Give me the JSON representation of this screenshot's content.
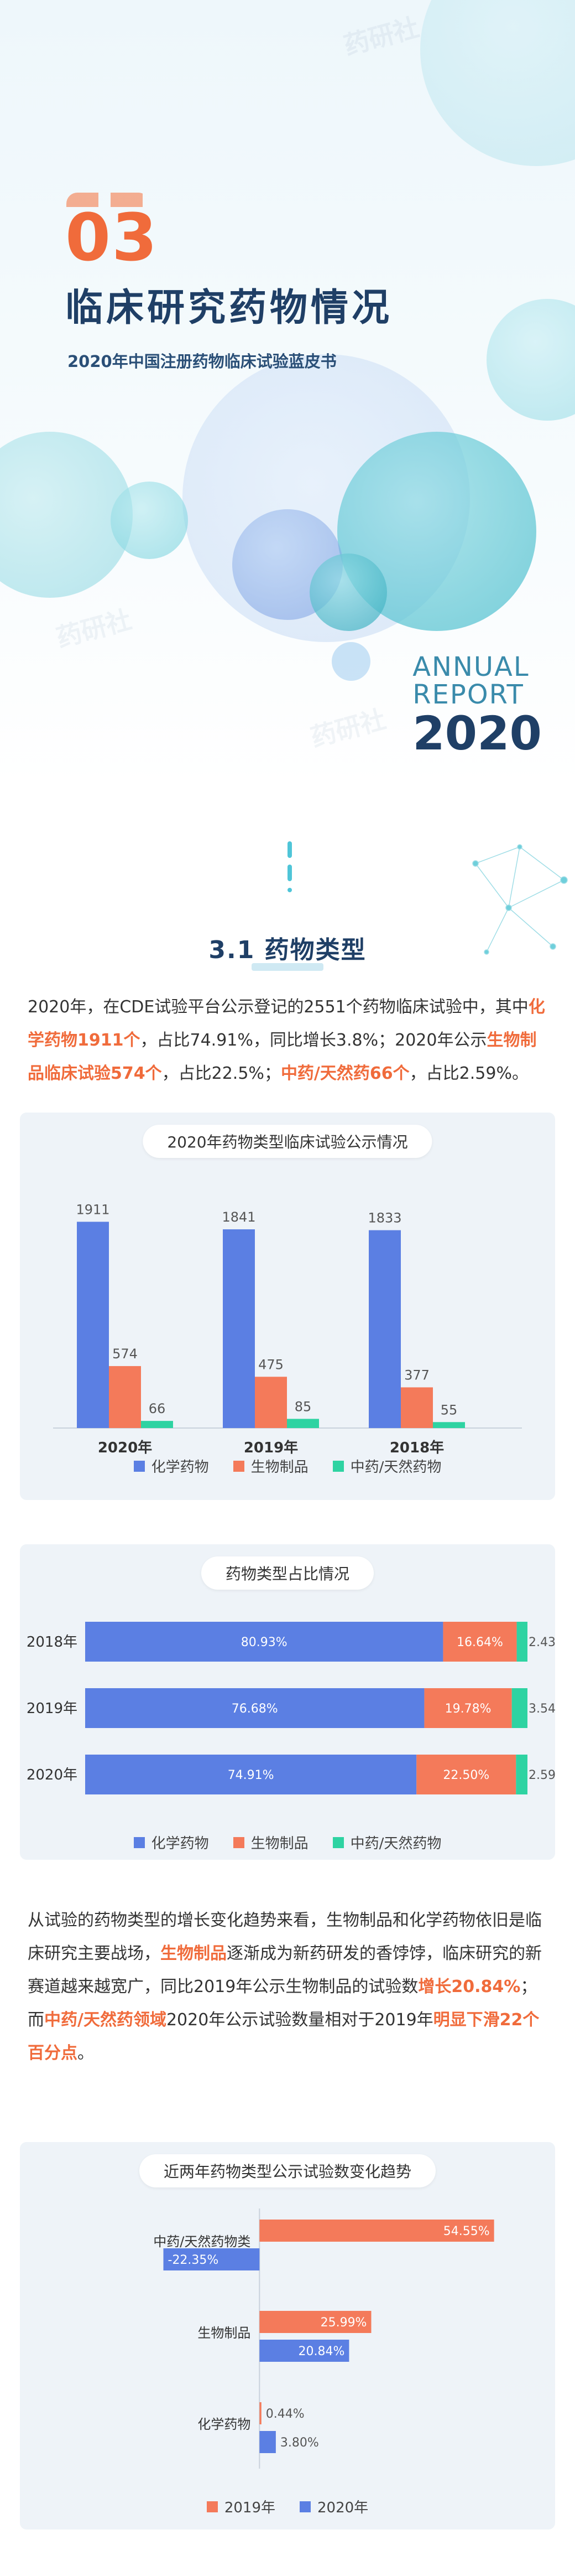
{
  "colors": {
    "chem": "#5b7fe3",
    "bio": "#f47a5a",
    "tcm": "#2ed3a2",
    "accent": "#f06b3b",
    "navy": "#1f3f66"
  },
  "hero": {
    "number": "03",
    "title": "临床研究药物情况",
    "subtitle": "2020年中国注册药物临床试验蓝皮书",
    "report_l1": "ANNUAL",
    "report_l2": "REPORT",
    "report_l3": "2020",
    "watermark": "药研社"
  },
  "section": {
    "title": "3.1 药物类型"
  },
  "para1": {
    "t1": "2020年，在CDE试验平台公示登记的2551个药物临床试验中，其中",
    "e1": "化学药物1911个",
    "t2": "，占比74.91%，同比增长3.8%；2020年公示",
    "e2": "生物制品临床试验574个",
    "t3": "，占比22.5%；",
    "e3": "中药/天然药66个",
    "t4": "，占比2.59%。"
  },
  "para2": {
    "t1": "从试验的药物类型的增长变化趋势来看，生物制品和化学药物依旧是临床研究主要战场，",
    "e1": "生物制品",
    "t2": "逐渐成为新药研发的香饽饽，临床研究的新赛道越来越宽广，同比2019年公示生物制品的试验数",
    "e2": "增长20.84%",
    "t3": "；而",
    "e3": "中药/天然药领域",
    "t4": "2020年公示试验数量相对于2019年",
    "e4": "明显下滑22个百分点",
    "t5": "。"
  },
  "chart_data": [
    {
      "type": "bar",
      "title": "2020年药物类型临床试验公示情况",
      "categories": [
        "2020年",
        "2019年",
        "2018年"
      ],
      "series": [
        {
          "name": "化学药物",
          "values": [
            1911,
            1841,
            1833
          ]
        },
        {
          "name": "生物制品",
          "values": [
            574,
            475,
            377
          ]
        },
        {
          "name": "中药/天然药物",
          "values": [
            66,
            85,
            55
          ]
        }
      ],
      "ylim": [
        0,
        2000
      ],
      "legend": "bottom"
    },
    {
      "type": "bar",
      "orientation": "horizontal",
      "stacked": "100%",
      "title": "药物类型占比情况",
      "categories": [
        "2018年",
        "2019年",
        "2020年"
      ],
      "series": [
        {
          "name": "化学药物",
          "values": [
            80.93,
            76.68,
            74.91
          ],
          "labels": [
            "80.93%",
            "76.68%",
            "74.91%"
          ]
        },
        {
          "name": "生物制品",
          "values": [
            16.64,
            19.78,
            22.5
          ],
          "labels": [
            "16.64%",
            "19.78%",
            "22.50%"
          ]
        },
        {
          "name": "中药/天然药物",
          "values": [
            2.43,
            3.54,
            2.59
          ],
          "labels": [
            "2.43%",
            "3.54%",
            "2.59%"
          ]
        }
      ],
      "legend": "bottom"
    },
    {
      "type": "bar",
      "orientation": "horizontal",
      "title": "近两年药物类型公示试验数变化趋势",
      "categories": [
        "中药/天然药物类",
        "生物制品",
        "化学药物"
      ],
      "series": [
        {
          "name": "2019年",
          "values": [
            54.55,
            25.99,
            0.44
          ],
          "labels": [
            "54.55%",
            "25.99%",
            "0.44%"
          ]
        },
        {
          "name": "2020年",
          "values": [
            -22.35,
            20.84,
            3.8
          ],
          "labels": [
            "-22.35%",
            "20.84%",
            "3.80%"
          ]
        }
      ],
      "xlim": [
        -30,
        60
      ],
      "legend": "bottom"
    }
  ]
}
